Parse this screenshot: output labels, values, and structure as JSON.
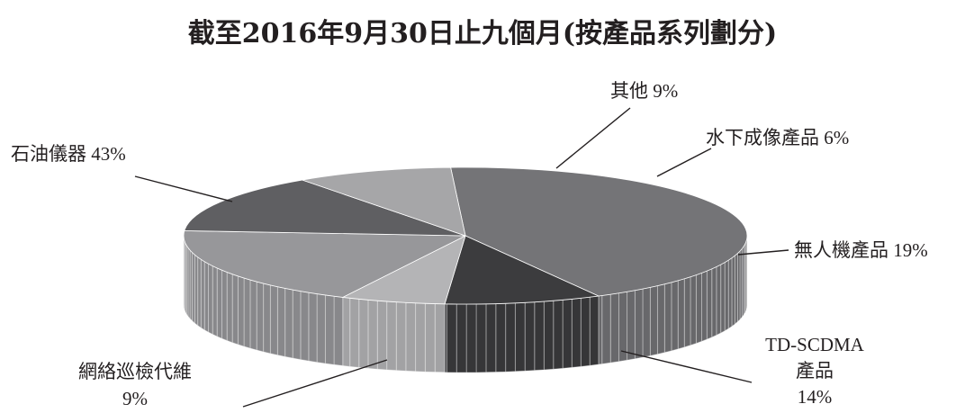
{
  "chart_data": {
    "type": "pie",
    "title": "截至2016年9月30日止九個月(按產品系列劃分)",
    "slices": [
      {
        "name": "石油儀器",
        "value": 43,
        "pct_label": "43%",
        "color": "#747477"
      },
      {
        "name": "其他",
        "value": 9,
        "pct_label": "9%",
        "color": "#3c3c3e"
      },
      {
        "name": "水下成像產品",
        "value": 6,
        "pct_label": "6%",
        "color": "#b4b4b6"
      },
      {
        "name": "無人機產品",
        "value": 19,
        "pct_label": "19%",
        "color": "#97979a"
      },
      {
        "name": "TD-SCDMA產品",
        "value": 14,
        "pct_label": "14%",
        "color": "#5f5f62"
      },
      {
        "name": "網絡巡檢代維",
        "value": 9,
        "pct_label": "9%",
        "color": "#a6a6a8"
      }
    ],
    "labels": {
      "oil": "石油儀器 43%",
      "other": "其他 9%",
      "underwater": "水下成像產品 6%",
      "drone": "無人機產品 19%",
      "td_line1": "TD-SCDMA",
      "td_line2": "產品",
      "td_line3": "14%",
      "network_line1": "網絡巡檢代維",
      "network_line2": "9%"
    },
    "style": "3d-pie"
  }
}
